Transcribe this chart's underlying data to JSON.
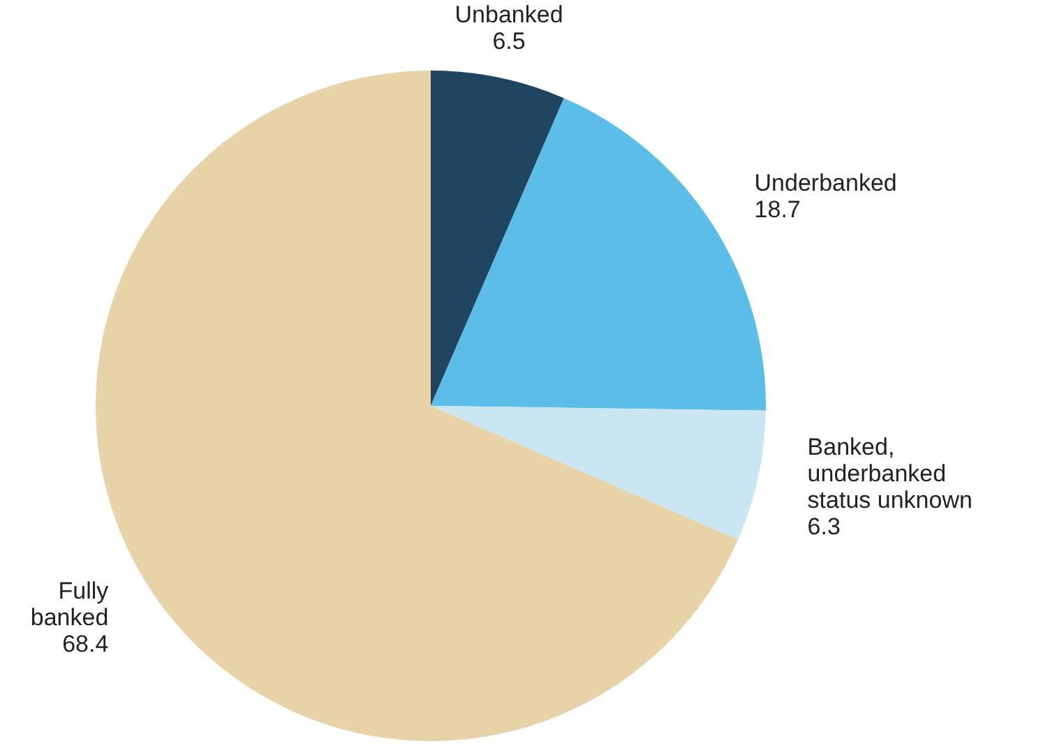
{
  "chart_data": {
    "type": "pie",
    "categories": [
      "Unbanked",
      "Underbanked",
      "Banked,\nunderbanked\nstatus unknown",
      "Fully\nbanked"
    ],
    "values": [
      6.5,
      18.7,
      6.3,
      68.4
    ],
    "colors": [
      "#1f4560",
      "#5bbde8",
      "#c9e6f2",
      "#e8d3a9"
    ],
    "data_labels": true
  }
}
